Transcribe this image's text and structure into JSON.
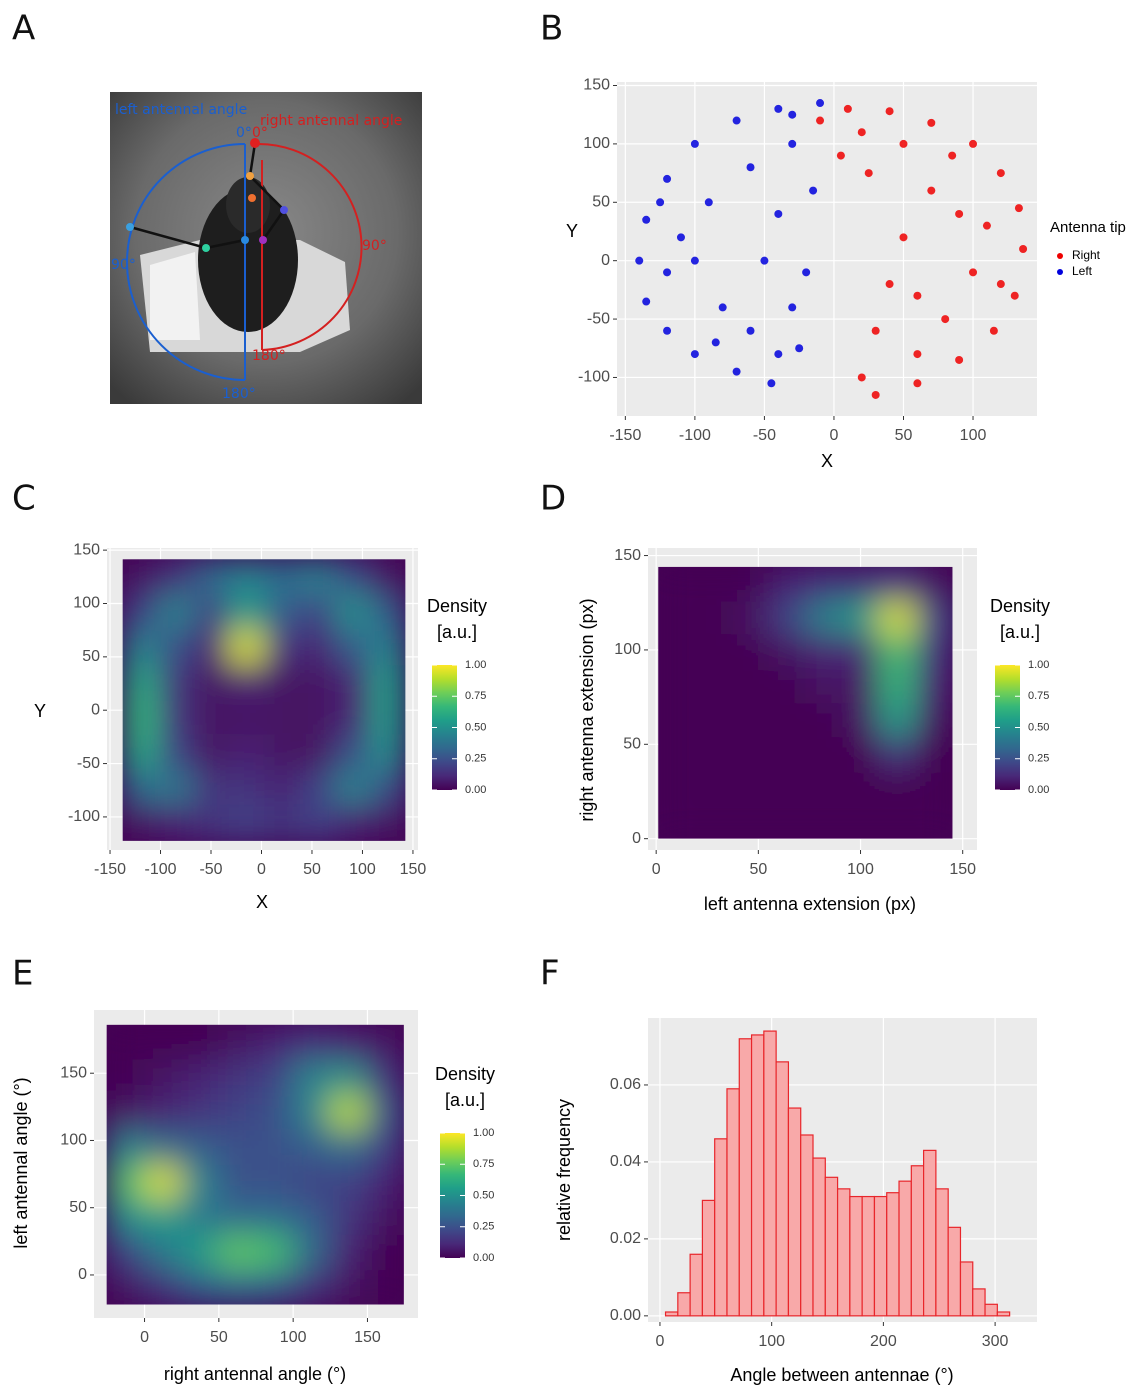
{
  "photo": {
    "panel": "A",
    "labels": [
      "left antennal angle",
      "right antennal angle",
      "0°",
      "0°",
      "90°",
      "90°",
      "180°",
      "180°"
    ]
  },
  "chart_data": [
    {
      "type": "scatter",
      "panel": "B",
      "xlabel": "X",
      "ylabel": "Y",
      "legend_title": "Antenna tip",
      "grid": true,
      "xlim": [
        -156,
        146
      ],
      "ylim": [
        -133,
        153
      ],
      "xticks": [
        -150,
        -100,
        -50,
        0,
        50,
        100
      ],
      "yticks": [
        -100,
        -50,
        0,
        50,
        100,
        150
      ],
      "series": [
        {
          "name": "Right",
          "color": "#ee0000",
          "x": [
            10,
            40,
            70,
            100,
            120,
            133,
            136,
            130,
            115,
            90,
            60,
            30,
            20,
            30,
            40,
            50,
            70,
            50,
            20,
            90,
            100,
            80,
            60,
            110,
            120,
            5,
            25,
            60,
            85,
            -10
          ],
          "values": [
            130,
            128,
            118,
            100,
            75,
            45,
            10,
            -30,
            -60,
            -85,
            -105,
            -115,
            -100,
            -60,
            -20,
            20,
            60,
            100,
            110,
            40,
            -10,
            -50,
            -80,
            30,
            -20,
            90,
            75,
            -30,
            90,
            120
          ]
        },
        {
          "name": "Left",
          "color": "#0000dd",
          "x": [
            -10,
            -40,
            -70,
            -100,
            -120,
            -135,
            -140,
            -135,
            -120,
            -100,
            -70,
            -45,
            -40,
            -30,
            -20,
            -40,
            -60,
            -30,
            -90,
            -100,
            -80,
            -60,
            -110,
            -120,
            -15,
            -50,
            -85,
            -25,
            -30,
            -125
          ],
          "values": [
            135,
            130,
            120,
            100,
            70,
            35,
            0,
            -35,
            -60,
            -80,
            -95,
            -105,
            -80,
            -40,
            -10,
            40,
            80,
            100,
            50,
            0,
            -40,
            -60,
            20,
            -10,
            60,
            0,
            -70,
            -75,
            125,
            50
          ]
        }
      ]
    },
    {
      "type": "heatmap",
      "panel": "C",
      "xlabel": "X",
      "ylabel": "Y",
      "grid": true,
      "colormap": "viridis",
      "colorbar_title": [
        "Density",
        "[a.u.]"
      ],
      "colorbar_lim": [
        0,
        1
      ],
      "colorbar_ticks": [
        {
          "value": 0,
          "label": "0.00"
        },
        {
          "value": 0.25,
          "label": "0.25"
        },
        {
          "value": 0.5,
          "label": "0.50"
        },
        {
          "value": 0.75,
          "label": "0.75"
        },
        {
          "value": 1,
          "label": "1.00"
        }
      ],
      "xlim": [
        -153,
        155
      ],
      "ylim": [
        -131,
        152
      ],
      "xticks": [
        -150,
        -100,
        -50,
        0,
        50,
        100,
        150
      ],
      "yticks": [
        -100,
        -50,
        0,
        50,
        100,
        150
      ],
      "x": [
        -120,
        -85,
        -50,
        -15,
        20,
        55,
        90,
        125
      ],
      "y": [
        125,
        92,
        59,
        26,
        -7,
        -40,
        -73,
        -106
      ],
      "z": [
        [
          0.05,
          0.15,
          0.35,
          0.45,
          0.35,
          0.45,
          0.25,
          0.05
        ],
        [
          0.2,
          0.45,
          0.2,
          0.55,
          0.3,
          0.2,
          0.5,
          0.3
        ],
        [
          0.45,
          0.25,
          0.1,
          0.95,
          0.15,
          0.1,
          0.3,
          0.45
        ],
        [
          0.6,
          0.15,
          0.05,
          0.1,
          0.05,
          0.05,
          0.1,
          0.55
        ],
        [
          0.65,
          0.15,
          0.05,
          0.05,
          0.05,
          0.05,
          0.1,
          0.55
        ],
        [
          0.6,
          0.2,
          0.05,
          0.1,
          0.05,
          0.05,
          0.25,
          0.5
        ],
        [
          0.35,
          0.4,
          0.15,
          0.15,
          0.1,
          0.2,
          0.45,
          0.25
        ],
        [
          0.05,
          0.1,
          0.15,
          0.2,
          0.15,
          0.2,
          0.1,
          0.05
        ]
      ]
    },
    {
      "type": "heatmap",
      "panel": "D",
      "xlabel": "left antenna extension (px)",
      "ylabel": "right antenna extension (px)",
      "grid": true,
      "colormap": "viridis",
      "colorbar_title": [
        "Density",
        "[a.u.]"
      ],
      "colorbar_lim": [
        0,
        1
      ],
      "colorbar_ticks": [
        {
          "value": 0,
          "label": "0.00"
        },
        {
          "value": 0.25,
          "label": "0.25"
        },
        {
          "value": 0.5,
          "label": "0.50"
        },
        {
          "value": 0.75,
          "label": "0.75"
        },
        {
          "value": 1,
          "label": "1.00"
        }
      ],
      "xlim": [
        -4,
        157
      ],
      "ylim": [
        -6,
        154
      ],
      "xticks": [
        0,
        50,
        100,
        150
      ],
      "yticks": [
        0,
        50,
        100,
        150
      ],
      "x": [
        10,
        28,
        46,
        64,
        82,
        100,
        118,
        136
      ],
      "y": [
        135,
        117,
        99,
        81,
        63,
        45,
        27,
        9
      ],
      "z": [
        [
          0,
          0,
          0,
          0.1,
          0.15,
          0.15,
          0.2,
          0.05
        ],
        [
          0,
          0,
          0.05,
          0.2,
          0.45,
          0.55,
          0.95,
          0.25
        ],
        [
          0,
          0,
          0,
          0.05,
          0.1,
          0.1,
          0.7,
          0.15
        ],
        [
          0,
          0,
          0,
          0,
          0.05,
          0.05,
          0.65,
          0.1
        ],
        [
          0,
          0,
          0,
          0,
          0,
          0.05,
          0.55,
          0.05
        ],
        [
          0,
          0,
          0,
          0,
          0,
          0,
          0.15,
          0
        ],
        [
          0,
          0,
          0,
          0,
          0,
          0,
          0,
          0
        ],
        [
          0,
          0,
          0,
          0,
          0,
          0,
          0,
          0
        ]
      ]
    },
    {
      "type": "heatmap",
      "panel": "E",
      "xlabel": "right antennal angle (°)",
      "ylabel": "left antennal angle (°)",
      "grid": true,
      "colormap": "viridis",
      "colorbar_title": [
        "Density",
        "[a.u.]"
      ],
      "colorbar_lim": [
        0,
        1
      ],
      "colorbar_ticks": [
        {
          "value": 0,
          "label": "0.00"
        },
        {
          "value": 0.25,
          "label": "0.25"
        },
        {
          "value": 0.5,
          "label": "0.50"
        },
        {
          "value": 0.75,
          "label": "0.75"
        },
        {
          "value": 1,
          "label": "1.00"
        }
      ],
      "xlim": [
        -34,
        184
      ],
      "ylim": [
        -32,
        197
      ],
      "xticks": [
        0,
        50,
        100,
        150
      ],
      "yticks": [
        0,
        50,
        100,
        150
      ],
      "x": [
        -13,
        12,
        37,
        62,
        87,
        112,
        137,
        162
      ],
      "y": [
        173,
        147,
        121,
        95,
        69,
        43,
        17,
        -9
      ],
      "z": [
        [
          0,
          0,
          0,
          0.05,
          0.1,
          0.15,
          0.1,
          0.05
        ],
        [
          0,
          0.05,
          0.1,
          0.15,
          0.2,
          0.45,
          0.5,
          0.15
        ],
        [
          0.05,
          0.1,
          0.15,
          0.2,
          0.25,
          0.45,
          0.9,
          0.3
        ],
        [
          0.45,
          0.35,
          0.3,
          0.25,
          0.25,
          0.3,
          0.35,
          0.2
        ],
        [
          0.7,
          0.95,
          0.45,
          0.25,
          0.25,
          0.2,
          0.2,
          0.1
        ],
        [
          0.5,
          0.55,
          0.4,
          0.35,
          0.35,
          0.3,
          0.15,
          0.05
        ],
        [
          0.2,
          0.4,
          0.55,
          0.75,
          0.7,
          0.35,
          0.1,
          0
        ],
        [
          0.05,
          0.15,
          0.3,
          0.35,
          0.3,
          0.15,
          0.05,
          0
        ]
      ]
    },
    {
      "type": "histogram",
      "panel": "F",
      "xlabel": "Angle between antennae (°)",
      "ylabel": "relative frequency",
      "grid": true,
      "color": "#f8a9a9",
      "edge_color": "#e8262b",
      "xlim": [
        -10.7,
        337.5
      ],
      "ylim": [
        -0.0016,
        0.0774
      ],
      "xticks": [
        0,
        100,
        200,
        300
      ],
      "yticks": [
        {
          "value": 0,
          "label": "0.00"
        },
        {
          "value": 0.02,
          "label": "0.02"
        },
        {
          "value": 0.04,
          "label": "0.04"
        },
        {
          "value": 0.06,
          "label": "0.06"
        }
      ],
      "bins": [
        5,
        16,
        27,
        38,
        49,
        60,
        71,
        82,
        93,
        104,
        115,
        126,
        137,
        148,
        159,
        170,
        181,
        192,
        203,
        214,
        225,
        236,
        247,
        258,
        269,
        280,
        291,
        302,
        313
      ],
      "values": [
        0.001,
        0.006,
        0.016,
        0.03,
        0.046,
        0.059,
        0.072,
        0.073,
        0.074,
        0.066,
        0.054,
        0.047,
        0.041,
        0.036,
        0.033,
        0.031,
        0.031,
        0.031,
        0.032,
        0.035,
        0.039,
        0.043,
        0.033,
        0.023,
        0.014,
        0.007,
        0.003,
        0.001
      ]
    }
  ]
}
